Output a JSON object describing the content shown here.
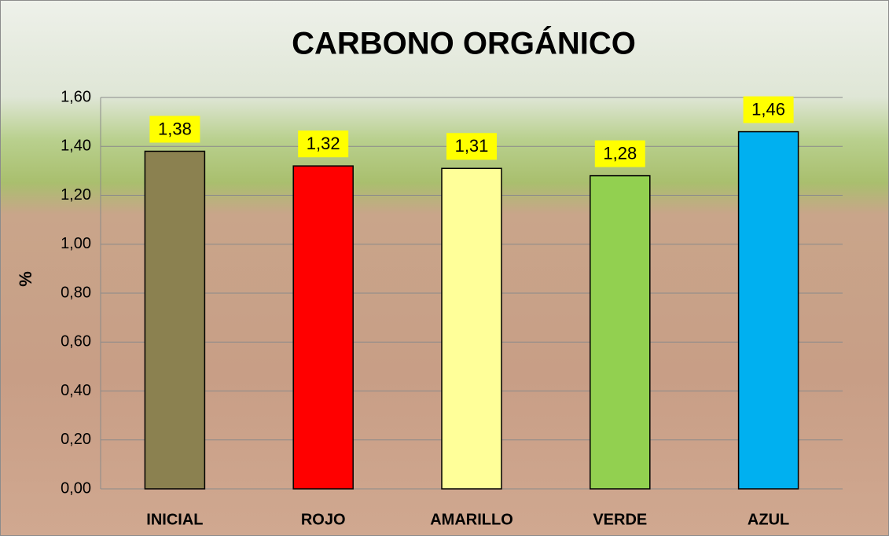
{
  "chart_data": {
    "type": "bar",
    "title": "CARBONO ORGÁNICO",
    "y_label": "%",
    "categories": [
      "INICIAL",
      "ROJO",
      "AMARILLO",
      "VERDE",
      "AZUL"
    ],
    "values": [
      1.38,
      1.32,
      1.31,
      1.28,
      1.46
    ],
    "value_labels": [
      "1,38",
      "1,32",
      "1,31",
      "1,28",
      "1,46"
    ],
    "colors": [
      "#8b8150",
      "#ff0000",
      "#ffff99",
      "#92d050",
      "#00b0f0"
    ],
    "ylim": [
      0,
      1.6
    ],
    "yticks": [
      {
        "value": 0,
        "label": "0,00"
      },
      {
        "value": 0.2,
        "label": "0,20"
      },
      {
        "value": 0.4,
        "label": "0,40"
      },
      {
        "value": 0.6,
        "label": "0,60"
      },
      {
        "value": 0.8,
        "label": "0,80"
      },
      {
        "value": 1.0,
        "label": "1,00"
      },
      {
        "value": 1.2,
        "label": "1,20"
      },
      {
        "value": 1.4,
        "label": "1,40"
      },
      {
        "value": 1.6,
        "label": "1,60"
      }
    ],
    "grid": true
  }
}
